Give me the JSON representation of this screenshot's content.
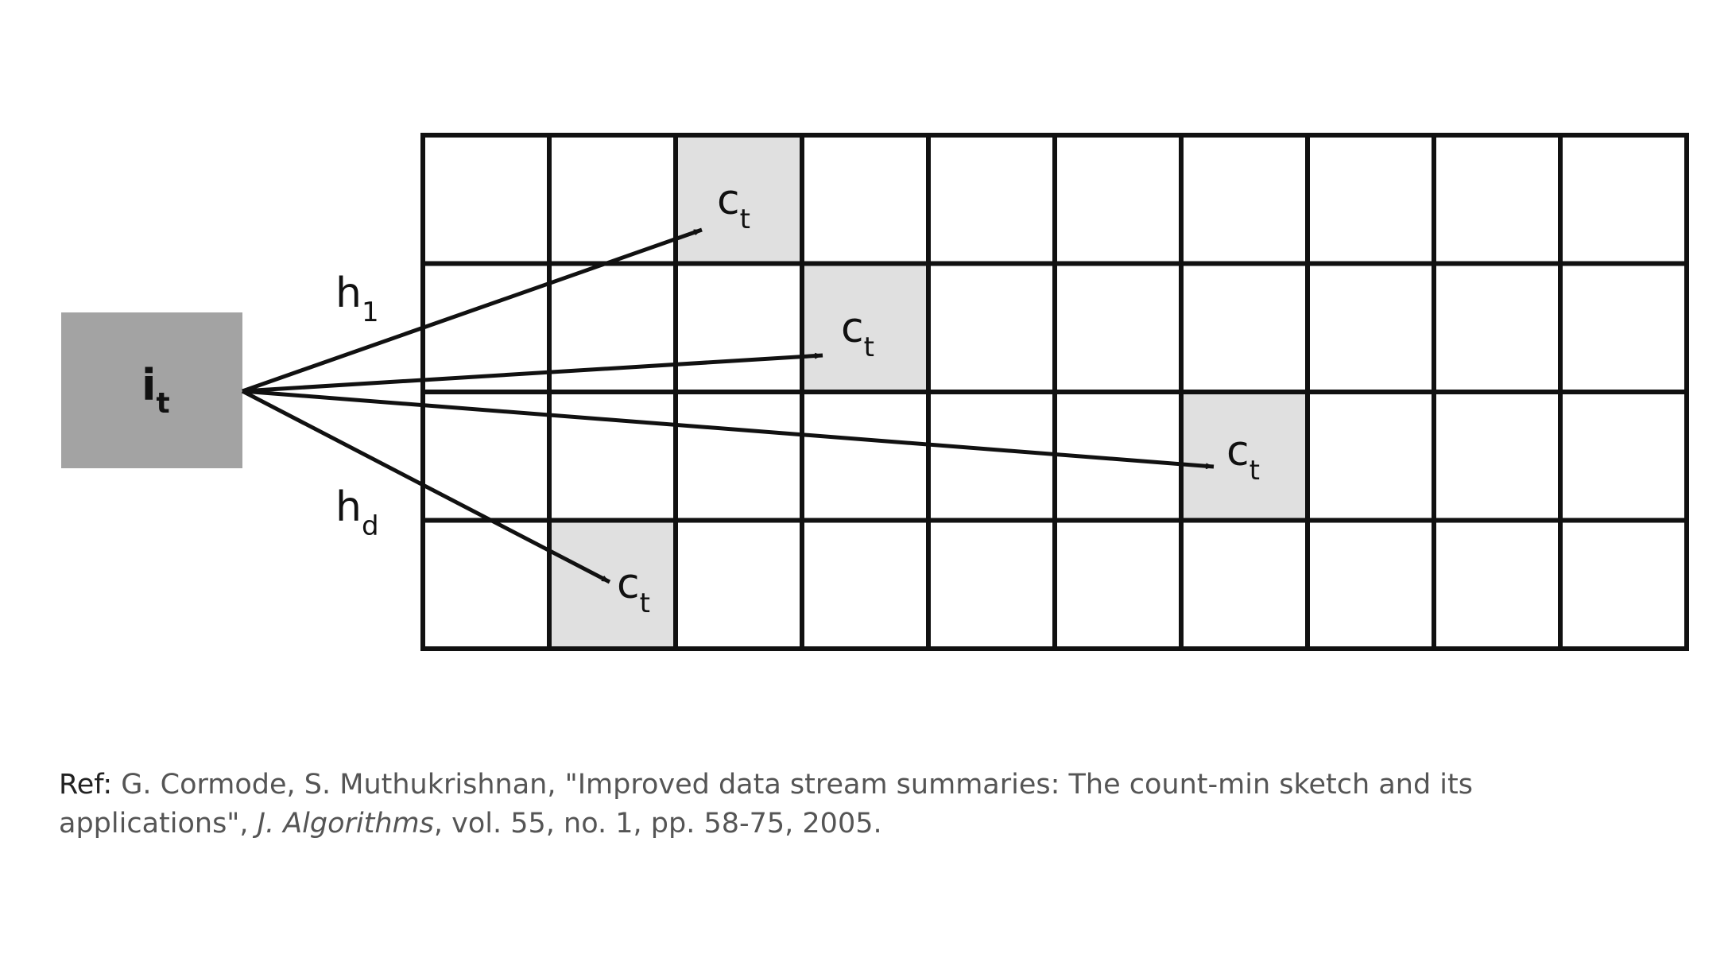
{
  "input_box": {
    "label": "i",
    "subscript": "t"
  },
  "hash_labels": [
    {
      "base": "h",
      "subscript": "1"
    },
    {
      "base": "h",
      "subscript": "d"
    }
  ],
  "grid": {
    "rows": 4,
    "cols": 10,
    "highlighted_cells": [
      {
        "row": 0,
        "col": 2
      },
      {
        "row": 1,
        "col": 3
      },
      {
        "row": 2,
        "col": 6
      },
      {
        "row": 3,
        "col": 1
      }
    ]
  },
  "cell_label": {
    "base": "c",
    "subscript": "t"
  },
  "reference": {
    "label": "Ref:",
    "text_before": " G. Cormode, S. Muthukrishnan, \"Improved data stream summaries: The count-min sketch and its applications\", ",
    "journal": "J. Algorithms",
    "text_after": ", vol. 55, no. 1, pp. 58-75, 2005."
  },
  "colors": {
    "input_box_fill": "#a3a3a3",
    "highlight_fill": "#e0e0e0",
    "grid_line": "#111111",
    "reference_text": "#555555"
  }
}
